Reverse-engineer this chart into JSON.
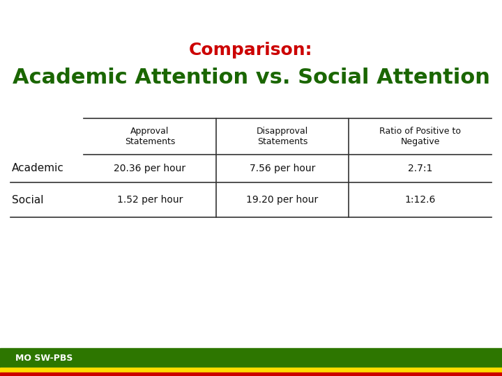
{
  "title_line1": "Comparison:",
  "title_line2": "Academic Attention vs. Social Attention",
  "title_line1_color": "#cc0000",
  "title_line2_color": "#1a6600",
  "col_headers": [
    "Approval\nStatements",
    "Disapproval\nStatements",
    "Ratio of Positive to\nNegative"
  ],
  "row_labels": [
    "Academic",
    "Social"
  ],
  "cell_data": [
    [
      "20.36 per hour",
      "7.56 per hour",
      "2.7:1"
    ],
    [
      "1.52 per hour",
      "19.20 per hour",
      "1:12.6"
    ]
  ],
  "footer_text": "MO SW-PBS",
  "footer_bg": "#2d7600",
  "footer_yellow": "#ffdd00",
  "footer_red": "#cc0000",
  "background_color": "#ffffff",
  "title1_fontsize": 18,
  "title2_fontsize": 22,
  "header_fontsize": 9,
  "cell_fontsize": 10,
  "rowlabel_fontsize": 11
}
